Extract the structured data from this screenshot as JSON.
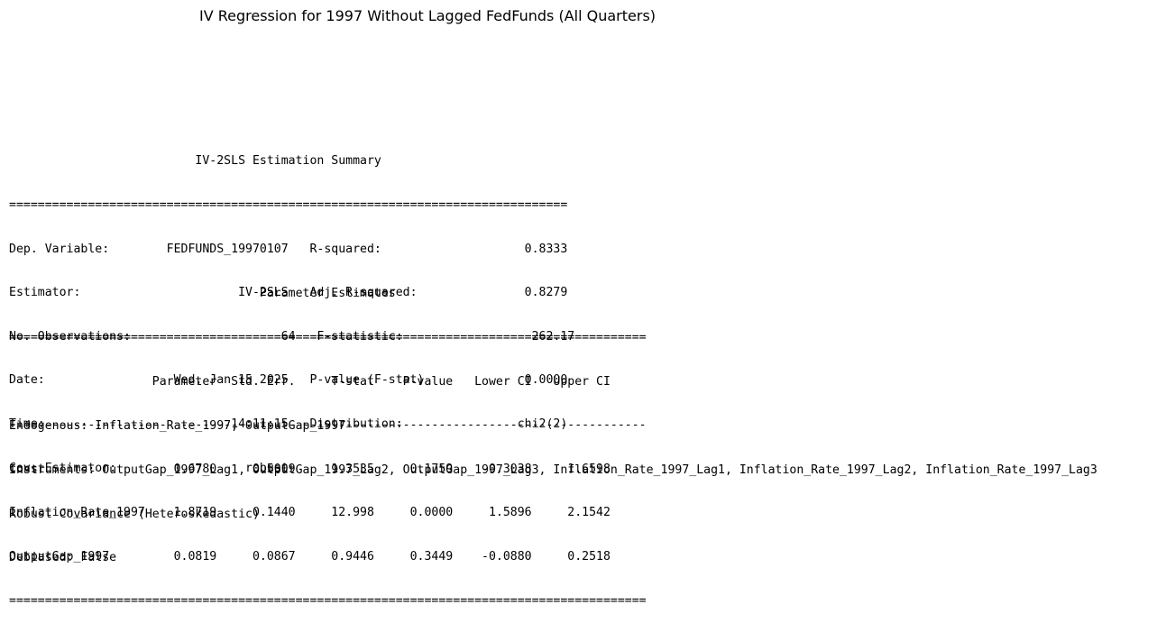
{
  "title": "IV Regression for 1997 Without Lagged FedFunds (All Quarters)",
  "summary": {
    "heading": "IV-2SLS Estimation Summary",
    "rule": "==============================================================================",
    "rows": [
      {
        "l_label": "Dep. Variable:",
        "l_value": "FEDFUNDS_19970107",
        "r_label": "R-squared:",
        "r_value": "0.8333"
      },
      {
        "l_label": "Estimator:",
        "l_value": "IV-2SLS",
        "r_label": "Adj. R-squared:",
        "r_value": "0.8279"
      },
      {
        "l_label": "No. Observations:",
        "l_value": "64",
        "r_label": "F-statistic:",
        "r_value": "262.17"
      },
      {
        "l_label": "Date:",
        "l_value": "Wed, Jan 15 2025",
        "r_label": "P-value (F-stat)",
        "r_value": "0.0000"
      },
      {
        "l_label": "Time:",
        "l_value": "14:11:15",
        "r_label": "Distribution:",
        "r_value": "chi2(2)"
      },
      {
        "l_label": "Cov. Estimator:",
        "l_value": "robust",
        "r_label": "",
        "r_value": ""
      }
    ]
  },
  "params": {
    "heading": "Parameter Estimates",
    "rule": "=========================================================================================",
    "dash": "-----------------------------------------------------------------------------------------",
    "columns": [
      "Parameter",
      "Std. Err.",
      "T-stat",
      "P-value",
      "Lower CI",
      "Upper CI"
    ],
    "rows": [
      {
        "name": "const",
        "values": [
          "0.6780",
          "0.5009",
          "1.3535",
          "0.1759",
          "-0.3038",
          "1.6598"
        ]
      },
      {
        "name": "Inflation_Rate_1997",
        "values": [
          "1.8719",
          "0.1440",
          "12.998",
          "0.0000",
          "1.5896",
          "2.1542"
        ]
      },
      {
        "name": "OutputGap_1997",
        "values": [
          "0.0819",
          "0.0867",
          "0.9446",
          "0.3449",
          "-0.0880",
          "0.2518"
        ]
      }
    ]
  },
  "notes": [
    "Endogenous: Inflation_Rate_1997, OutputGap_1997",
    "Instruments: OutputGap_1997_Lag1, OutputGap_1997_Lag2, OutputGap_1997_Lag3, Inflation_Rate_1997_Lag1, Inflation_Rate_1997_Lag2, Inflation_Rate_1997_Lag3",
    "Robust Covariance (Heteroskedastic)",
    "Debiased: False"
  ]
}
